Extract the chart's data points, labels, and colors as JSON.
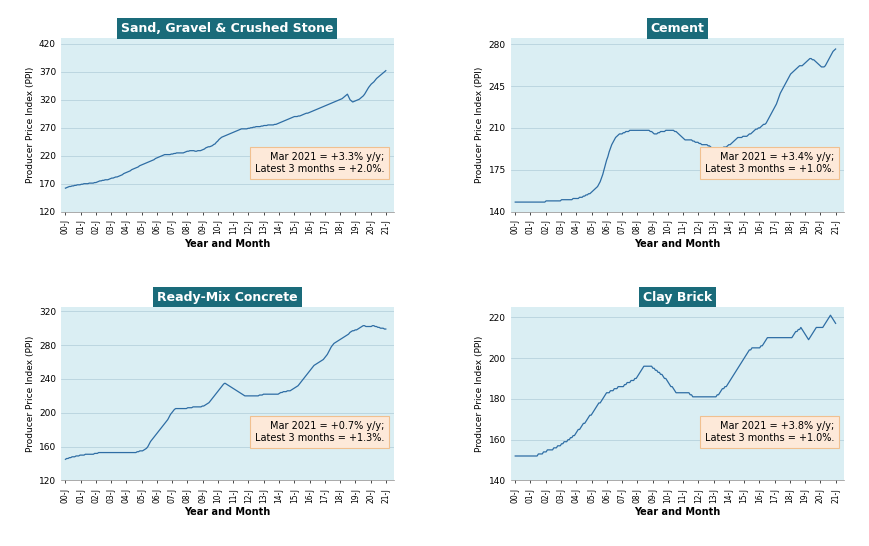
{
  "title_color": "#1a6b7a",
  "line_color": "#2e6da4",
  "bg_color": "#daeef3",
  "annotation_bg": "#fde9d9",
  "annotation_border": "#f0c090",
  "outer_bg": "#ffffff",
  "ylabel": "Producer Price Index (PPI)",
  "xlabel": "Year and Month",
  "x_labels": [
    "00-J",
    "01-J",
    "02-J",
    "03-J",
    "04-J",
    "05-J",
    "06-J",
    "07-J",
    "08-J",
    "09-J",
    "10-J",
    "11-J",
    "12-J",
    "13-J",
    "14-J",
    "15-J",
    "16-J",
    "17-J",
    "18-J",
    "19-J",
    "20-J",
    "21-J"
  ],
  "subplots": [
    {
      "title": "Sand, Gravel & Crushed Stone",
      "ylim": [
        120,
        430
      ],
      "yticks": [
        120,
        170,
        220,
        270,
        320,
        370,
        420
      ],
      "annotation": "Mar 2021 = +3.3% y/y;\nLatest 3 months = +2.0%.",
      "data": [
        162,
        163,
        164,
        165,
        165,
        166,
        166,
        167,
        167,
        168,
        168,
        168,
        169,
        169,
        170,
        170,
        170,
        170,
        171,
        171,
        171,
        171,
        172,
        172,
        173,
        174,
        175,
        175,
        176,
        176,
        177,
        177,
        177,
        178,
        179,
        180,
        180,
        181,
        182,
        182,
        183,
        184,
        185,
        186,
        188,
        189,
        190,
        191,
        192,
        193,
        195,
        196,
        197,
        198,
        199,
        200,
        202,
        203,
        204,
        205,
        206,
        207,
        208,
        209,
        210,
        211,
        212,
        213,
        215,
        216,
        217,
        218,
        219,
        220,
        221,
        222,
        222,
        222,
        222,
        222,
        223,
        223,
        224,
        224,
        225,
        225,
        225,
        225,
        225,
        225,
        226,
        227,
        228,
        228,
        229,
        229,
        229,
        229,
        228,
        228,
        229,
        229,
        229,
        230,
        231,
        232,
        234,
        235,
        236,
        236,
        237,
        238,
        240,
        241,
        244,
        246,
        249,
        251,
        253,
        254,
        255,
        256,
        257,
        258,
        259,
        260,
        261,
        262,
        263,
        264,
        265,
        266,
        267,
        268,
        268,
        268,
        268,
        268,
        269,
        269,
        270,
        270,
        271,
        271,
        272,
        272,
        272,
        272,
        273,
        273,
        274,
        274,
        274,
        275,
        275,
        275,
        275,
        275,
        276,
        276,
        277,
        278,
        279,
        280,
        281,
        282,
        283,
        284,
        285,
        286,
        287,
        288,
        289,
        290,
        290,
        290,
        291,
        291,
        292,
        293,
        294,
        295,
        296,
        296,
        297,
        298,
        299,
        300,
        301,
        302,
        303,
        304,
        305,
        306,
        307,
        308,
        309,
        310,
        311,
        312,
        313,
        314,
        315,
        316,
        317,
        318,
        319,
        320,
        321,
        322,
        324,
        326,
        328,
        330,
        325,
        320,
        318,
        316,
        317,
        318,
        319,
        320,
        321,
        323,
        325,
        327,
        330,
        334,
        338,
        342,
        345,
        348,
        350,
        352,
        355,
        358,
        360,
        362,
        364,
        366,
        368,
        370,
        372
      ]
    },
    {
      "title": "Cement",
      "ylim": [
        140,
        285
      ],
      "yticks": [
        140,
        175,
        210,
        245,
        280
      ],
      "annotation": "Mar 2021 = +3.4% y/y;\nLatest 3 months = +1.0%.",
      "data": [
        148,
        148,
        148,
        148,
        148,
        148,
        148,
        148,
        148,
        148,
        148,
        148,
        148,
        148,
        148,
        148,
        148,
        148,
        148,
        148,
        148,
        148,
        148,
        148,
        149,
        149,
        149,
        149,
        149,
        149,
        149,
        149,
        149,
        149,
        149,
        149,
        150,
        150,
        150,
        150,
        150,
        150,
        150,
        150,
        150,
        151,
        151,
        151,
        151,
        151,
        152,
        152,
        152,
        153,
        153,
        154,
        154,
        155,
        155,
        156,
        157,
        158,
        159,
        160,
        161,
        163,
        165,
        168,
        171,
        175,
        179,
        183,
        186,
        190,
        193,
        196,
        198,
        200,
        202,
        203,
        204,
        205,
        205,
        205,
        206,
        206,
        207,
        207,
        207,
        208,
        208,
        208,
        208,
        208,
        208,
        208,
        208,
        208,
        208,
        208,
        208,
        208,
        208,
        208,
        208,
        207,
        207,
        206,
        205,
        205,
        205,
        206,
        206,
        207,
        207,
        207,
        207,
        208,
        208,
        208,
        208,
        208,
        208,
        208,
        207,
        207,
        206,
        205,
        204,
        203,
        202,
        201,
        200,
        200,
        200,
        200,
        200,
        200,
        199,
        199,
        198,
        198,
        198,
        197,
        197,
        196,
        196,
        196,
        196,
        196,
        195,
        195,
        194,
        193,
        192,
        192,
        192,
        192,
        192,
        193,
        193,
        193,
        194,
        194,
        194,
        195,
        196,
        196,
        197,
        198,
        199,
        200,
        201,
        202,
        202,
        202,
        202,
        203,
        203,
        203,
        203,
        204,
        205,
        205,
        206,
        207,
        208,
        209,
        209,
        210,
        210,
        211,
        212,
        213,
        213,
        214,
        216,
        218,
        220,
        222,
        224,
        226,
        228,
        230,
        233,
        236,
        239,
        241,
        243,
        245,
        247,
        249,
        251,
        253,
        255,
        256,
        257,
        258,
        259,
        260,
        261,
        262,
        262,
        262,
        263,
        264,
        265,
        266,
        267,
        268,
        268,
        267,
        267,
        266,
        265,
        264,
        263,
        262,
        261,
        261,
        261,
        262,
        264,
        266,
        268,
        270,
        272,
        274,
        275,
        276
      ]
    },
    {
      "title": "Ready-Mix Concrete",
      "ylim": [
        120,
        325
      ],
      "yticks": [
        120,
        160,
        200,
        240,
        280,
        320
      ],
      "annotation": "Mar 2021 = +0.7% y/y;\nLatest 3 months = +1.3%.",
      "data": [
        145,
        146,
        146,
        147,
        147,
        148,
        148,
        148,
        149,
        149,
        149,
        150,
        150,
        150,
        150,
        151,
        151,
        151,
        151,
        151,
        151,
        151,
        152,
        152,
        152,
        153,
        153,
        153,
        153,
        153,
        153,
        153,
        153,
        153,
        153,
        153,
        153,
        153,
        153,
        153,
        153,
        153,
        153,
        153,
        153,
        153,
        153,
        153,
        153,
        153,
        153,
        153,
        153,
        153,
        154,
        154,
        155,
        155,
        155,
        156,
        157,
        158,
        160,
        163,
        166,
        168,
        170,
        172,
        174,
        176,
        178,
        180,
        182,
        184,
        186,
        188,
        190,
        192,
        195,
        198,
        200,
        202,
        204,
        205,
        205,
        205,
        205,
        205,
        205,
        205,
        205,
        205,
        206,
        206,
        206,
        206,
        207,
        207,
        207,
        207,
        207,
        207,
        207,
        208,
        208,
        209,
        210,
        211,
        212,
        214,
        216,
        218,
        220,
        222,
        224,
        226,
        228,
        230,
        232,
        234,
        235,
        234,
        233,
        232,
        231,
        230,
        229,
        228,
        227,
        226,
        225,
        224,
        223,
        222,
        221,
        220,
        220,
        220,
        220,
        220,
        220,
        220,
        220,
        220,
        220,
        220,
        221,
        221,
        221,
        222,
        222,
        222,
        222,
        222,
        222,
        222,
        222,
        222,
        222,
        222,
        222,
        223,
        224,
        224,
        225,
        225,
        225,
        226,
        226,
        226,
        227,
        228,
        229,
        230,
        231,
        232,
        234,
        236,
        238,
        240,
        242,
        244,
        246,
        248,
        250,
        252,
        254,
        256,
        257,
        258,
        259,
        260,
        261,
        262,
        263,
        265,
        267,
        269,
        272,
        275,
        278,
        280,
        282,
        283,
        284,
        285,
        286,
        287,
        288,
        289,
        290,
        291,
        292,
        293,
        295,
        296,
        297,
        297,
        298,
        298,
        299,
        300,
        301,
        302,
        303,
        303,
        302,
        302,
        302,
        302,
        302,
        303,
        303,
        302,
        302,
        301,
        301,
        300,
        300,
        300,
        299,
        299
      ]
    },
    {
      "title": "Clay Brick",
      "ylim": [
        140,
        225
      ],
      "yticks": [
        140,
        160,
        180,
        200,
        220
      ],
      "annotation": "Mar 2021 = +3.8% y/y;\nLatest 3 months = +1.0%.",
      "data": [
        152,
        152,
        152,
        152,
        152,
        152,
        152,
        152,
        152,
        152,
        152,
        152,
        152,
        152,
        152,
        152,
        152,
        152,
        153,
        153,
        153,
        153,
        154,
        154,
        154,
        155,
        155,
        155,
        155,
        155,
        156,
        156,
        156,
        157,
        157,
        157,
        158,
        158,
        159,
        159,
        159,
        160,
        160,
        161,
        161,
        162,
        162,
        163,
        164,
        165,
        165,
        166,
        167,
        168,
        168,
        169,
        170,
        171,
        172,
        172,
        173,
        174,
        175,
        176,
        177,
        178,
        178,
        179,
        180,
        181,
        182,
        183,
        183,
        183,
        184,
        184,
        184,
        185,
        185,
        185,
        186,
        186,
        186,
        186,
        186,
        187,
        187,
        188,
        188,
        188,
        189,
        189,
        189,
        190,
        190,
        191,
        192,
        193,
        194,
        195,
        196,
        196,
        196,
        196,
        196,
        196,
        196,
        195,
        195,
        194,
        194,
        193,
        193,
        192,
        192,
        191,
        190,
        190,
        189,
        188,
        187,
        186,
        186,
        185,
        184,
        183,
        183,
        183,
        183,
        183,
        183,
        183,
        183,
        183,
        183,
        183,
        182,
        182,
        181,
        181,
        181,
        181,
        181,
        181,
        181,
        181,
        181,
        181,
        181,
        181,
        181,
        181,
        181,
        181,
        181,
        181,
        181,
        182,
        182,
        183,
        184,
        185,
        185,
        186,
        186,
        187,
        188,
        189,
        190,
        191,
        192,
        193,
        194,
        195,
        196,
        197,
        198,
        199,
        200,
        201,
        202,
        203,
        204,
        204,
        205,
        205,
        205,
        205,
        205,
        205,
        205,
        206,
        206,
        207,
        208,
        209,
        210,
        210,
        210,
        210,
        210,
        210,
        210,
        210,
        210,
        210,
        210,
        210,
        210,
        210,
        210,
        210,
        210,
        210,
        210,
        210,
        211,
        212,
        213,
        213,
        214,
        214,
        215,
        214,
        213,
        212,
        211,
        210,
        209,
        210,
        211,
        212,
        213,
        214,
        215,
        215,
        215,
        215,
        215,
        215,
        216,
        217,
        218,
        219,
        220,
        221,
        220,
        219,
        218,
        217
      ]
    }
  ]
}
